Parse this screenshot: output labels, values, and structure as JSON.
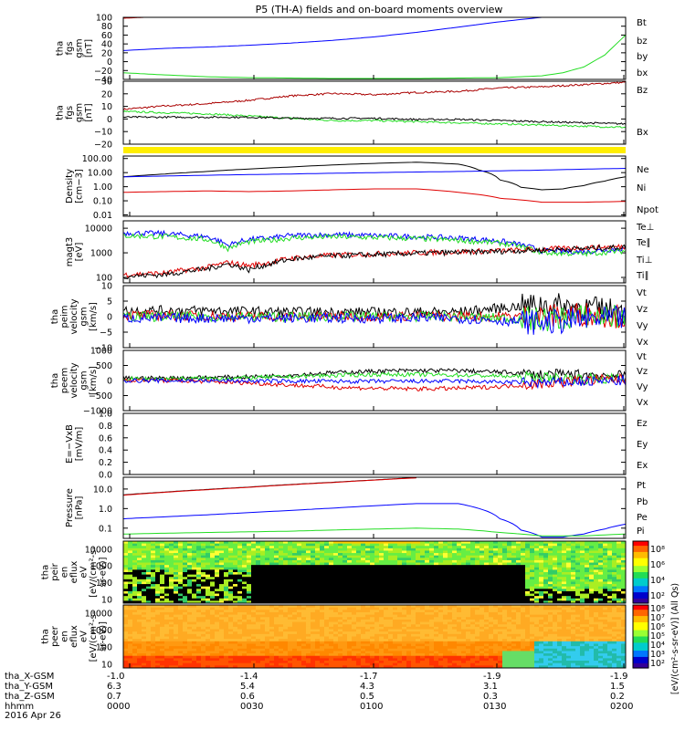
{
  "title": "P5 (TH-A) fields and on-board moments overview",
  "colors": {
    "black": "#000000",
    "red": "#e00000",
    "green": "#22dd22",
    "blue": "#0000ff",
    "darkred": "#aa0000",
    "yellow": "#ffee00"
  },
  "footer": {
    "labels": [
      "tha_X-GSM",
      "tha_Y-GSM",
      "tha_Z-GSM",
      "hhmm",
      "2016 Apr 26"
    ],
    "x_gsm": [
      "-1.0",
      "-1.4",
      "-1.7",
      "-1.9",
      "-1.9"
    ],
    "y_gsm": [
      "6.3",
      "5.4",
      "4.3",
      "3.1",
      "1.5"
    ],
    "z_gsm": [
      "0.7",
      "0.6",
      "0.5",
      "0.3",
      "0.2"
    ],
    "hhmm": [
      "0000",
      "0030",
      "0100",
      "0130",
      "0200"
    ]
  },
  "colorbar": {
    "label": "[eV/(cm²-s-sr-eV)] (All Qs)",
    "ticks_top": [
      "10⁸",
      "10⁶",
      "10⁴",
      "10²"
    ],
    "ticks_bottom": [
      "10⁸",
      "10⁷",
      "10⁶",
      "10⁵",
      "10⁴",
      "10³",
      "10²"
    ]
  },
  "chart_data": [
    {
      "type": "line",
      "id": "fgs_dsl",
      "ylabel": [
        "tha",
        "fgs",
        "gsm",
        "[nT]"
      ],
      "yticks": [
        "100",
        "80",
        "60",
        "40",
        "20",
        "0",
        "−20",
        "−40"
      ],
      "ylim": [
        -40,
        100
      ],
      "xlim": [
        0,
        120
      ],
      "legend": [
        {
          "label": "Bt",
          "color": "black"
        },
        {
          "label": "bz",
          "color": "red"
        },
        {
          "label": "by",
          "color": "green"
        },
        {
          "label": "bx",
          "color": "blue"
        }
      ],
      "series": [
        {
          "color": "red",
          "x": [
            0,
            5
          ],
          "y": [
            98,
            100
          ]
        },
        {
          "color": "blue",
          "x": [
            0,
            10,
            20,
            30,
            40,
            50,
            60,
            70,
            80,
            90,
            100
          ],
          "y": [
            25,
            30,
            33,
            37,
            42,
            48,
            56,
            66,
            78,
            90,
            100
          ]
        },
        {
          "color": "green",
          "x": [
            0,
            10,
            20,
            30,
            40,
            50,
            60,
            70,
            80,
            90,
            100,
            105,
            110,
            115,
            120
          ],
          "y": [
            -25,
            -30,
            -34,
            -36,
            -37,
            -38,
            -38,
            -38,
            -37,
            -36,
            -32,
            -25,
            -12,
            15,
            60
          ]
        }
      ]
    },
    {
      "type": "line",
      "id": "fgs_gse",
      "ylabel": [
        "tha",
        "fgs",
        "gsm",
        "[nT]"
      ],
      "yticks": [
        "30",
        "20",
        "10",
        "0",
        "−10",
        "−20"
      ],
      "ylim": [
        -24,
        32
      ],
      "xlim": [
        0,
        120
      ],
      "legend": [
        {
          "label": "Bz",
          "color": "darkred"
        },
        {
          "label": "Bx",
          "color": "green"
        }
      ],
      "series": [
        {
          "color": "darkred",
          "x": [
            0,
            10,
            20,
            30,
            40,
            50,
            60,
            70,
            80,
            90,
            100,
            110,
            120
          ],
          "y": [
            7,
            10,
            12,
            15,
            19,
            21,
            20,
            22,
            23,
            26,
            27,
            29,
            31
          ]
        },
        {
          "color": "green",
          "x": [
            0,
            10,
            20,
            30,
            40,
            50,
            60,
            70,
            80,
            90,
            100,
            110,
            120
          ],
          "y": [
            5,
            4,
            3,
            1,
            -1,
            -3,
            -3,
            -4,
            -5,
            -6,
            -7,
            -8,
            -9
          ]
        },
        {
          "color": "black",
          "x": [
            0,
            10,
            20,
            30,
            40,
            50,
            60,
            70,
            80,
            90,
            100,
            110,
            120
          ],
          "y": [
            0,
            0,
            0,
            0,
            -1,
            -1,
            -1,
            -2,
            -2,
            -3,
            -4,
            -5,
            -6
          ]
        }
      ]
    },
    {
      "type": "line",
      "id": "density",
      "ylabel": [
        "Density",
        "[cm−3]"
      ],
      "yticks": [
        "100.00",
        "10.00",
        "1.00",
        "0.10",
        "0.01"
      ],
      "yscale": "log",
      "ylim": [
        0.008,
        150
      ],
      "xlim": [
        0,
        120
      ],
      "legend": [
        {
          "label": "Ne",
          "color": "red"
        },
        {
          "label": "Ni",
          "color": "black"
        },
        {
          "label": "Npot",
          "color": "blue"
        }
      ],
      "series": [
        {
          "color": "black",
          "x": [
            0,
            10,
            20,
            30,
            40,
            50,
            60,
            70,
            80,
            85,
            90,
            95,
            100,
            105,
            110,
            115,
            120
          ],
          "y": [
            5,
            8,
            12,
            18,
            25,
            35,
            45,
            55,
            40,
            15,
            3,
            0.9,
            0.6,
            0.7,
            1.2,
            2.5,
            5
          ]
        },
        {
          "color": "blue",
          "x": [
            0,
            20,
            40,
            60,
            80,
            100,
            120
          ],
          "y": [
            5,
            6.5,
            8,
            10,
            12,
            15,
            20
          ]
        },
        {
          "color": "red",
          "x": [
            0,
            10,
            20,
            30,
            40,
            50,
            60,
            70,
            80,
            90,
            100,
            110,
            120
          ],
          "y": [
            0.4,
            0.45,
            0.5,
            0.45,
            0.5,
            0.6,
            0.7,
            0.7,
            0.4,
            0.15,
            0.08,
            0.08,
            0.09
          ]
        }
      ]
    },
    {
      "type": "line",
      "id": "temperature",
      "ylabel": [
        "magt3",
        "[eV]"
      ],
      "yticks": [
        "10000",
        "1000",
        "100"
      ],
      "yscale": "log",
      "ylim": [
        60,
        20000
      ],
      "xlim": [
        0,
        120
      ],
      "legend": [
        {
          "label": "Te⊥",
          "color": "red"
        },
        {
          "label": "Te∥",
          "color": "black"
        },
        {
          "label": "Ti⊥",
          "color": "blue"
        },
        {
          "label": "Ti∥",
          "color": "green"
        }
      ],
      "series": [
        {
          "color": "blue",
          "x": [
            0,
            10,
            20,
            25,
            30,
            35,
            40,
            50,
            60,
            70,
            80,
            90,
            100,
            110,
            120
          ],
          "y": [
            6500,
            6000,
            4500,
            2000,
            3500,
            4000,
            5000,
            5500,
            5000,
            4500,
            4000,
            3000,
            1200,
            1100,
            1500
          ]
        },
        {
          "color": "green",
          "x": [
            0,
            10,
            20,
            25,
            30,
            35,
            40,
            50,
            60,
            70,
            80,
            90,
            100,
            110,
            120
          ],
          "y": [
            5000,
            4500,
            3500,
            1500,
            2800,
            3200,
            4000,
            4500,
            4200,
            3800,
            3200,
            2500,
            1000,
            900,
            1200
          ]
        },
        {
          "color": "red",
          "x": [
            0,
            10,
            20,
            25,
            30,
            35,
            40,
            50,
            60,
            70,
            80,
            90,
            100,
            110,
            120
          ],
          "y": [
            130,
            150,
            250,
            400,
            300,
            400,
            600,
            800,
            900,
            1000,
            1100,
            1200,
            1400,
            1600,
            1800
          ]
        },
        {
          "color": "black",
          "x": [
            0,
            10,
            20,
            25,
            30,
            35,
            40,
            50,
            60,
            70,
            80,
            90,
            100,
            110,
            120
          ],
          "y": [
            110,
            130,
            220,
            350,
            200,
            350,
            550,
            750,
            850,
            950,
            1050,
            1150,
            1300,
            1500,
            1700
          ]
        }
      ]
    },
    {
      "type": "line",
      "id": "ion_velocity",
      "ylabel": [
        "tha",
        "peim",
        "velocity",
        "gsm",
        "[km/s]"
      ],
      "yticks": [
        "10",
        "5",
        "0",
        "−5",
        "−10"
      ],
      "ylim": [
        -10,
        10
      ],
      "xlim": [
        0,
        120
      ],
      "legend": [
        {
          "label": "Vt",
          "color": "black"
        },
        {
          "label": "Vz",
          "color": "red"
        },
        {
          "label": "Vy",
          "color": "green"
        },
        {
          "label": "Vx",
          "color": "blue"
        }
      ],
      "series": [
        {
          "color": "black",
          "x": [
            0,
            20,
            40,
            60,
            80,
            100,
            110,
            120
          ],
          "y": [
            2,
            2,
            1.5,
            1.5,
            1.5,
            4,
            3,
            1.5
          ]
        },
        {
          "color": "red",
          "x": [
            0,
            40,
            80,
            100,
            110,
            120
          ],
          "y": [
            0.5,
            0,
            0.2,
            0,
            1,
            0
          ]
        },
        {
          "color": "green",
          "x": [
            0,
            40,
            80,
            100,
            110,
            120
          ],
          "y": [
            0,
            0,
            0,
            -1,
            0,
            0
          ]
        },
        {
          "color": "blue",
          "x": [
            0,
            40,
            80,
            100,
            110,
            120
          ],
          "y": [
            -0.5,
            -0.5,
            -0.5,
            -2,
            -1,
            -0.5
          ]
        }
      ]
    },
    {
      "type": "line",
      "id": "electron_velocity",
      "ylabel": [
        "tha",
        "peem",
        "velocity",
        "gsm",
        "[km/s]"
      ],
      "yticks": [
        "1000",
        "500",
        "0",
        "−500",
        "−1000"
      ],
      "ylim": [
        -1000,
        1000
      ],
      "xlim": [
        0,
        120
      ],
      "legend": [
        {
          "label": "Vt",
          "color": "black"
        },
        {
          "label": "Vz",
          "color": "red"
        },
        {
          "label": "Vy",
          "color": "green"
        },
        {
          "label": "Vx",
          "color": "blue"
        }
      ],
      "series": [
        {
          "color": "black",
          "x": [
            0,
            10,
            20,
            30,
            40,
            50,
            60,
            70,
            80,
            90,
            100,
            110,
            120
          ],
          "y": [
            80,
            80,
            100,
            120,
            180,
            260,
            310,
            330,
            330,
            280,
            200,
            200,
            150
          ]
        },
        {
          "color": "green",
          "x": [
            0,
            10,
            20,
            30,
            40,
            50,
            60,
            70,
            80,
            90,
            100,
            110,
            120
          ],
          "y": [
            50,
            60,
            70,
            90,
            130,
            170,
            200,
            200,
            180,
            150,
            100,
            60,
            50
          ]
        },
        {
          "color": "red",
          "x": [
            0,
            10,
            20,
            30,
            40,
            50,
            60,
            70,
            80,
            90,
            100,
            110,
            120
          ],
          "y": [
            20,
            0,
            -30,
            -80,
            -150,
            -220,
            -260,
            -280,
            -260,
            -200,
            -100,
            0,
            50
          ]
        },
        {
          "color": "blue",
          "x": [
            0,
            20,
            40,
            60,
            80,
            100,
            110,
            120
          ],
          "y": [
            0,
            -10,
            -20,
            -30,
            -20,
            -80,
            -40,
            -10
          ]
        }
      ]
    },
    {
      "type": "line",
      "id": "e_field",
      "ylabel": [
        "E=−VxB",
        "[mV/m]"
      ],
      "yticks": [
        "1.0",
        "0.8",
        "0.6",
        "0.4",
        "0.2",
        "0.0"
      ],
      "ylim": [
        0,
        1
      ],
      "xlim": [
        0,
        120
      ],
      "legend": [
        {
          "label": "Ez",
          "color": "red"
        },
        {
          "label": "Ey",
          "color": "green"
        },
        {
          "label": "Ex",
          "color": "blue"
        }
      ],
      "series": []
    },
    {
      "type": "line",
      "id": "pressure",
      "ylabel": [
        "Pressure",
        "[nPa]"
      ],
      "yticks": [
        "10.0",
        "1.0",
        "0.1"
      ],
      "yscale": "log",
      "ylim": [
        0.03,
        40
      ],
      "xlim": [
        0,
        120
      ],
      "legend": [
        {
          "label": "Pt",
          "color": "black"
        },
        {
          "label": "Pb",
          "color": "red"
        },
        {
          "label": "Pe",
          "color": "green"
        },
        {
          "label": "Pi",
          "color": "blue"
        }
      ],
      "series": [
        {
          "color": "black",
          "x": [
            0,
            10,
            20,
            30,
            40,
            50,
            60,
            70
          ],
          "y": [
            5,
            7,
            9.5,
            12.5,
            17,
            22,
            29,
            38
          ]
        },
        {
          "color": "red",
          "x": [
            0,
            10,
            20,
            30,
            40,
            50,
            60,
            70
          ],
          "y": [
            4.8,
            6.8,
            9.2,
            12.2,
            16.5,
            21.5,
            28.5,
            37
          ]
        },
        {
          "color": "blue",
          "x": [
            0,
            10,
            20,
            30,
            40,
            50,
            60,
            70,
            80,
            85,
            90,
            95,
            100,
            105,
            110,
            115,
            120
          ],
          "y": [
            0.3,
            0.38,
            0.48,
            0.62,
            0.8,
            1.05,
            1.4,
            1.8,
            1.8,
            1,
            0.3,
            0.08,
            0.035,
            0.035,
            0.05,
            0.09,
            0.16
          ]
        },
        {
          "color": "green",
          "x": [
            0,
            10,
            20,
            30,
            40,
            50,
            60,
            70,
            80,
            90,
            100,
            110,
            120
          ],
          "y": [
            0.05,
            0.055,
            0.06,
            0.065,
            0.07,
            0.08,
            0.09,
            0.1,
            0.09,
            0.06,
            0.04,
            0.04,
            0.05
          ]
        }
      ]
    },
    {
      "type": "heatmap",
      "id": "ion_eflux",
      "ylabel": [
        "tha",
        "peir",
        "en",
        "eflux",
        "eV",
        "[eV/(cm²-s-",
        "sr-eV)]"
      ],
      "yticks": [
        "10000",
        "1000",
        "100",
        "10"
      ],
      "yscale": "log",
      "ylim": [
        6,
        30000
      ],
      "xlim": [
        0,
        120
      ]
    },
    {
      "type": "heatmap",
      "id": "electron_eflux",
      "ylabel": [
        "tha",
        "peer",
        "en",
        "eflux",
        "eV",
        "[eV/(cm²-s-",
        "sr-eV)]"
      ],
      "yticks": [
        "10000",
        "1000",
        "100",
        "10"
      ],
      "yscale": "log",
      "ylim": [
        6,
        30000
      ],
      "xlim": [
        0,
        120
      ]
    }
  ]
}
